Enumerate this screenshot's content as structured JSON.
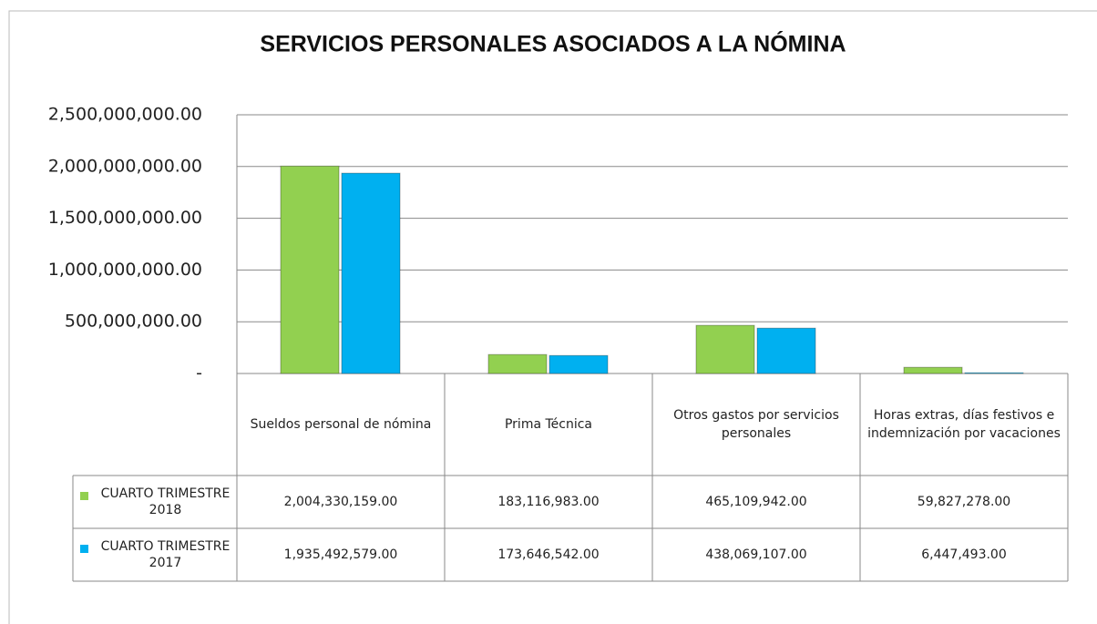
{
  "chart_data": {
    "type": "bar",
    "title": "SERVICIOS PERSONALES ASOCIADOS A LA NÓMINA",
    "categories": [
      "Sueldos personal de nómina",
      "Prima Técnica",
      "Otros gastos por servicios personales",
      "Horas extras, días festivos e indemnización por vacaciones"
    ],
    "series": [
      {
        "name": "CUARTO TRIMESTRE 2018",
        "color": "#92d050",
        "values": [
          2004330159.0,
          183116983.0,
          465109942.0,
          59827278.0
        ],
        "value_labels": [
          "2,004,330,159.00",
          "183,116,983.00",
          "465,109,942.00",
          "59,827,278.00"
        ]
      },
      {
        "name": "CUARTO TRIMESTRE 2017",
        "color": "#00b0f0",
        "values": [
          1935492579.0,
          173646542.0,
          438069107.0,
          6447493.0
        ],
        "value_labels": [
          "1,935,492,579.00",
          "173,646,542.00",
          "438,069,107.00",
          "6,447,493.00"
        ]
      }
    ],
    "ylim": [
      0,
      2500000000
    ],
    "yticks": [
      {
        "value": 0,
        "label": "-"
      },
      {
        "value": 500000000,
        "label": "500,000,000.00"
      },
      {
        "value": 1000000000,
        "label": "1,000,000,000.00"
      },
      {
        "value": 1500000000,
        "label": "1,500,000,000.00"
      },
      {
        "value": 2000000000,
        "label": "2,000,000,000.00"
      },
      {
        "value": 2500000000,
        "label": "2,500,000,000.00"
      }
    ],
    "grid": true
  }
}
